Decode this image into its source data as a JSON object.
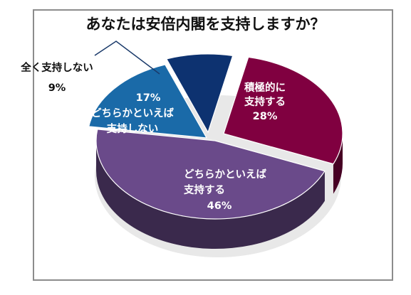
{
  "chart_data": {
    "type": "pie",
    "title": "あなたは安倍内閣を支持しますか？",
    "slices": [
      {
        "label_lines": [
          "積極的に",
          "支持する"
        ],
        "value": 28,
        "value_label": "28%",
        "color": "#800040",
        "text_color": "#ffffff"
      },
      {
        "label_lines": [
          "どちらかといえば",
          "支持する"
        ],
        "value": 46,
        "value_label": "46%",
        "color": "#6a4a8a",
        "text_color": "#ffffff"
      },
      {
        "label_lines": [
          "どちらかといえば",
          "支持しない"
        ],
        "value": 17,
        "value_label": "17%",
        "color": "#1a6aa8",
        "text_color": "#ffffff"
      },
      {
        "label_lines": [
          "全く支持しない"
        ],
        "value": 9,
        "value_label": "9%",
        "color": "#0d3270",
        "text_color": "#111111"
      }
    ]
  }
}
